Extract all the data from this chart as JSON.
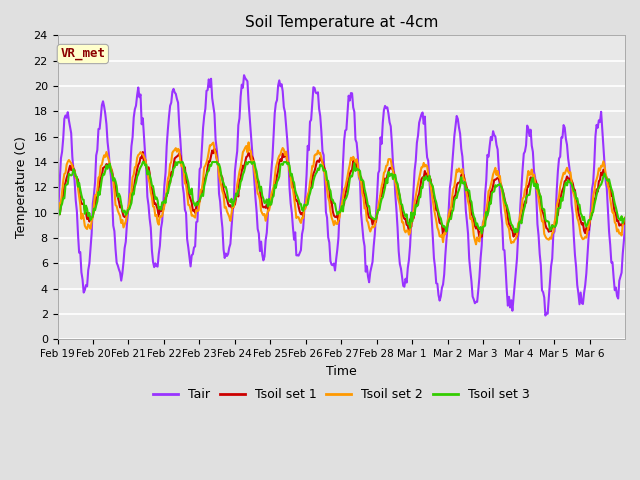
{
  "title": "Soil Temperature at -4cm",
  "xlabel": "Time",
  "ylabel": "Temperature (C)",
  "ylim": [
    0,
    24
  ],
  "yticks": [
    0,
    2,
    4,
    6,
    8,
    10,
    12,
    14,
    16,
    18,
    20,
    22,
    24
  ],
  "x_tick_labels": [
    "Feb 19",
    "Feb 20",
    "Feb 21",
    "Feb 22",
    "Feb 23",
    "Feb 24",
    "Feb 25",
    "Feb 26",
    "Feb 27",
    "Feb 28",
    "Mar 1",
    "Mar 2",
    "Mar 3",
    "Mar 4",
    "Mar 5",
    "Mar 6"
  ],
  "annotation_text": "VR_met",
  "annotation_color": "#8B0000",
  "annotation_bg": "#FFFFCC",
  "tair_color": "#9933FF",
  "tsoil1_color": "#CC0000",
  "tsoil2_color": "#FF9900",
  "tsoil3_color": "#33CC00",
  "linewidth": 1.5,
  "bg_color": "#E0E0E0",
  "plot_bg_color": "#E8E8E8",
  "grid_color": "#FFFFFF",
  "n_points": 500
}
